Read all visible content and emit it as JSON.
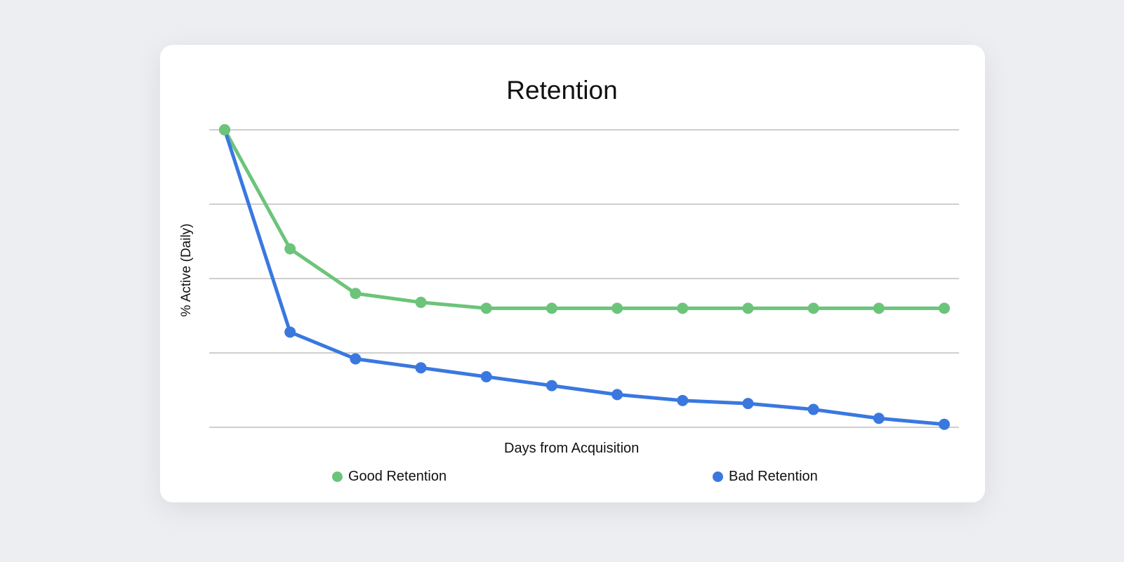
{
  "chart_data": {
    "type": "line",
    "title": "Retention",
    "xlabel": "Days from Acquisition",
    "ylabel": "% Active (Daily)",
    "x": [
      1,
      2,
      3,
      4,
      5,
      6,
      7,
      8,
      9,
      10,
      11,
      12
    ],
    "ylim": [
      0,
      100
    ],
    "yticks": [
      0,
      25,
      50,
      75,
      100
    ],
    "grid": true,
    "legend": "bottom",
    "series": [
      {
        "name": "Good Retention",
        "color": "#6cc47a",
        "values": [
          100,
          60,
          45,
          42,
          40,
          40,
          40,
          40,
          40,
          40,
          40,
          40
        ]
      },
      {
        "name": "Bad Retention",
        "color": "#3a78e0",
        "values": [
          100,
          32,
          23,
          20,
          17,
          14,
          11,
          9,
          8,
          6,
          3,
          1
        ]
      }
    ]
  }
}
